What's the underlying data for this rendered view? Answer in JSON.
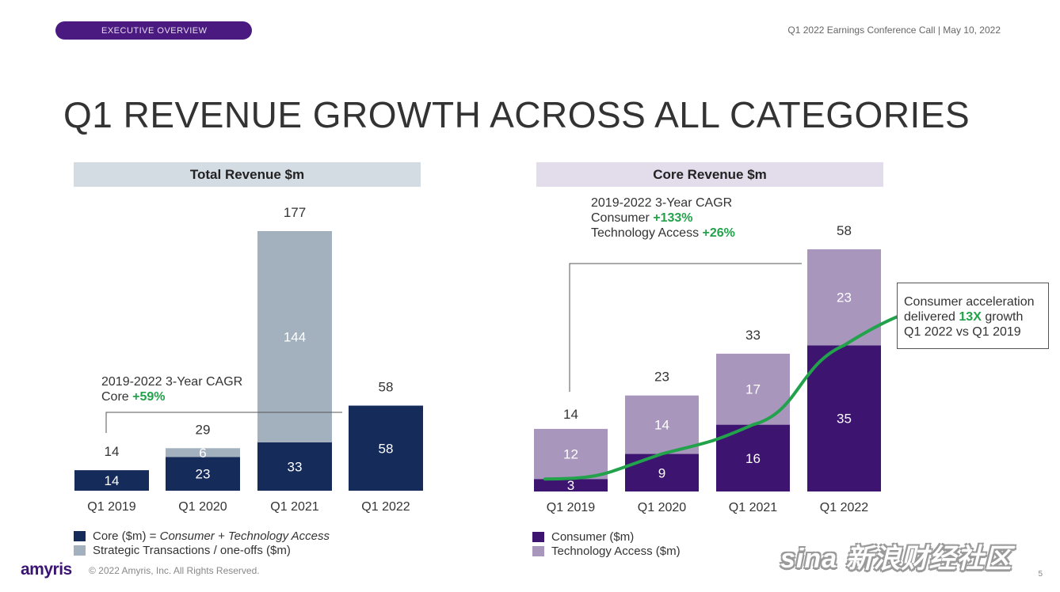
{
  "header": {
    "section_label": "EXECUTIVE OVERVIEW",
    "conference": "Q1 2022 Earnings Conference Call | May 10, 2022"
  },
  "slide_title": "Q1 REVENUE GROWTH ACROSS ALL CATEGORIES",
  "chart_data": [
    {
      "type": "bar",
      "stacked": true,
      "title": "Total Revenue $m",
      "categories": [
        "Q1 2019",
        "Q1 2020",
        "Q1 2021",
        "Q1 2022"
      ],
      "series": [
        {
          "name": "Core ($m) = Consumer + Technology Access",
          "values": [
            14,
            23,
            33,
            58
          ],
          "color": "#152c5b"
        },
        {
          "name": "Strategic Transactions / one-offs ($m)",
          "values": [
            0,
            6,
            144,
            0
          ],
          "color": "#a3b0bd"
        }
      ],
      "totals": [
        14,
        29,
        177,
        58
      ],
      "ylim": [
        0,
        177
      ],
      "legend_position": "bottom",
      "annotation": {
        "line1": "2019-2022 3-Year CAGR",
        "label": "Core",
        "value": "+59%"
      }
    },
    {
      "type": "bar",
      "stacked": true,
      "title": "Core Revenue $m",
      "categories": [
        "Q1 2019",
        "Q1 2020",
        "Q1 2021",
        "Q1 2022"
      ],
      "series": [
        {
          "name": "Consumer ($m)",
          "values": [
            3,
            9,
            16,
            35
          ],
          "color": "#3d1470"
        },
        {
          "name": "Technology Access ($m)",
          "values": [
            12,
            14,
            17,
            23
          ],
          "color": "#a896bd"
        }
      ],
      "totals": [
        14,
        23,
        33,
        58
      ],
      "ylim": [
        0,
        58
      ],
      "legend_position": "bottom",
      "trend_color": "#22a24a",
      "annotation": {
        "line1": "2019-2022 3-Year CAGR",
        "consumer_label": "Consumer",
        "consumer_value": "+133%",
        "tech_label": "Technology Access",
        "tech_value": "+26%"
      },
      "callout": {
        "line1": "Consumer acceleration",
        "line2a": "delivered",
        "line2b": "13X",
        "line2c": "growth",
        "line3": "Q1 2022 vs Q1 2019"
      }
    }
  ],
  "footer": {
    "logo": "amyris",
    "copyright": "© 2022 Amyris, Inc. All Rights Reserved.",
    "page": "5",
    "watermark": "sina 新浪财经社区"
  }
}
